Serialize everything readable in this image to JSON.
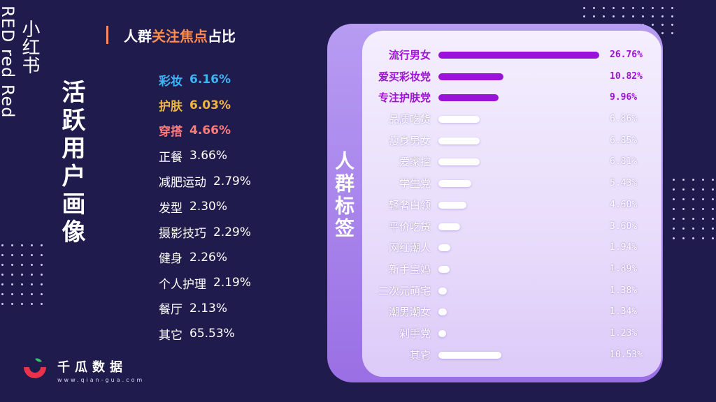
{
  "brand": {
    "en_vertical": "RED red Red",
    "cn_vertical": "小红书",
    "title_vertical": "活跃用户画像"
  },
  "heading": {
    "part1": "人群",
    "highlight": "关注焦点",
    "part2": "占比"
  },
  "focus_items": [
    {
      "label": "彩妆",
      "value": "6.16%",
      "color": "#3fb4f5",
      "bold": true
    },
    {
      "label": "护肤",
      "value": "6.03%",
      "color": "#f2b545",
      "bold": true
    },
    {
      "label": "穿搭",
      "value": "4.66%",
      "color": "#ff7b7b",
      "bold": true
    },
    {
      "label": "正餐",
      "value": "3.66%",
      "color": "#ffffff",
      "bold": false
    },
    {
      "label": "减肥运动",
      "value": "2.79%",
      "color": "#ffffff",
      "bold": false
    },
    {
      "label": "发型",
      "value": "2.30%",
      "color": "#ffffff",
      "bold": false
    },
    {
      "label": "摄影技巧",
      "value": "2.29%",
      "color": "#ffffff",
      "bold": false
    },
    {
      "label": "健身",
      "value": "2.26%",
      "color": "#ffffff",
      "bold": false
    },
    {
      "label": "个人护理",
      "value": "2.19%",
      "color": "#ffffff",
      "bold": false
    },
    {
      "label": "餐厅",
      "value": "2.13%",
      "color": "#ffffff",
      "bold": false
    },
    {
      "label": "其它",
      "value": "65.53%",
      "color": "#ffffff",
      "bold": false
    }
  ],
  "tag_panel_title": "人群标签",
  "chart_data": {
    "type": "bar",
    "categories": [
      "流行男女",
      "爱买彩妆党",
      "专注护肤党",
      "品质吃货",
      "瘦身男女",
      "爱家控",
      "学生党",
      "轻奢白领",
      "平价吃货",
      "网红潮人",
      "新手宝妈",
      "二次元萌宅",
      "潮男潮女",
      "剁手党",
      "其它"
    ],
    "values": [
      26.76,
      10.82,
      9.96,
      6.86,
      6.85,
      6.81,
      5.43,
      4.6,
      3.6,
      1.94,
      1.89,
      1.38,
      1.34,
      1.23,
      10.53
    ],
    "labels": [
      "26.76%",
      "10.82%",
      "9.96%",
      "6.86%",
      "6.85%",
      "6.81%",
      "5.43%",
      "4.60%",
      "3.60%",
      "1.94%",
      "1.89%",
      "1.38%",
      "1.34%",
      "1.23%",
      "10.53%"
    ],
    "highlight_count": 3,
    "highlight_color": "#9a12d8",
    "bar_color": "#ffffff",
    "xlim": [
      0,
      27
    ]
  },
  "logo": {
    "name": "千瓜数据",
    "url": "www.qian-gua.com"
  },
  "colors": {
    "background": "#1f1b4d",
    "accent": "#ff8a4d"
  }
}
